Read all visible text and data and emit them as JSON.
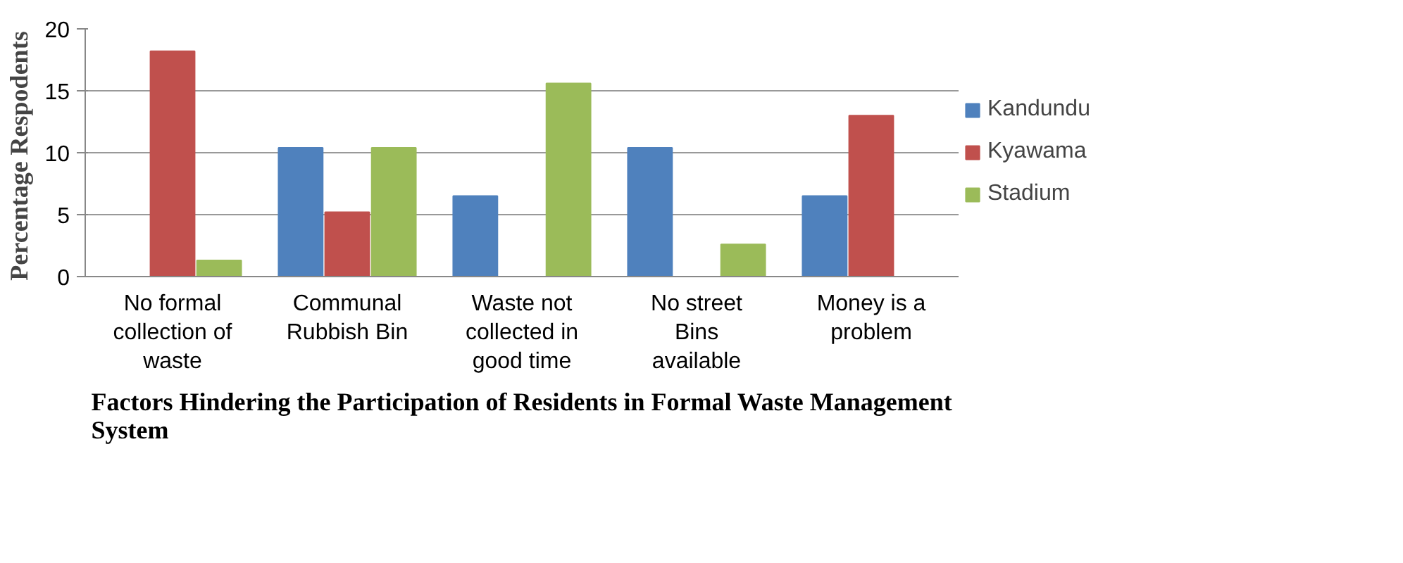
{
  "chart_data": {
    "type": "bar",
    "xlabel": "Factors Hindering the Participation of Residents in Formal Waste Management System",
    "ylabel": "Percentage  Respodents",
    "categories": [
      "No formal collection of waste",
      "Communal Rubbish Bin",
      "Waste not collected in good time",
      "No street Bins available",
      "Money is a problem"
    ],
    "series": [
      {
        "name": "Kandundu",
        "color": "#4f81bd",
        "values": [
          0,
          10.4,
          6.5,
          10.4,
          6.5
        ]
      },
      {
        "name": "Kyawama",
        "color": "#c0504d",
        "values": [
          18.2,
          5.2,
          0,
          0,
          13.0
        ]
      },
      {
        "name": "Stadium",
        "color": "#9bbb59",
        "values": [
          1.3,
          10.4,
          15.6,
          2.6,
          0
        ]
      }
    ],
    "ylim": [
      0,
      20
    ],
    "yticks": [
      0,
      5,
      10,
      15,
      20
    ],
    "grid": "y",
    "legend": "right"
  }
}
